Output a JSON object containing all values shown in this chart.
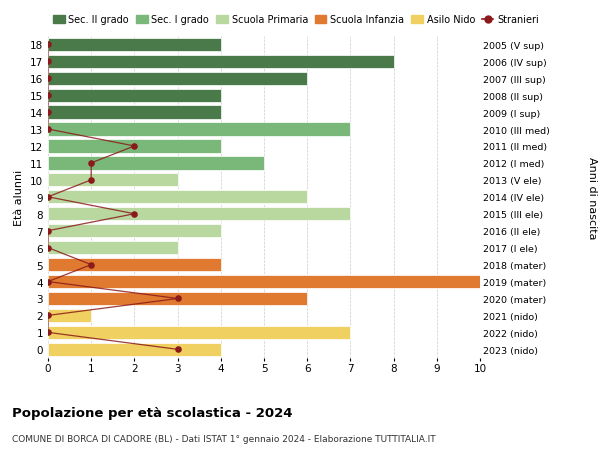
{
  "ages": [
    18,
    17,
    16,
    15,
    14,
    13,
    12,
    11,
    10,
    9,
    8,
    7,
    6,
    5,
    4,
    3,
    2,
    1,
    0
  ],
  "right_labels": [
    "2005 (V sup)",
    "2006 (IV sup)",
    "2007 (III sup)",
    "2008 (II sup)",
    "2009 (I sup)",
    "2010 (III med)",
    "2011 (II med)",
    "2012 (I med)",
    "2013 (V ele)",
    "2014 (IV ele)",
    "2015 (III ele)",
    "2016 (II ele)",
    "2017 (I ele)",
    "2018 (mater)",
    "2019 (mater)",
    "2020 (mater)",
    "2021 (nido)",
    "2022 (nido)",
    "2023 (nido)"
  ],
  "bar_values": [
    4,
    8,
    6,
    4,
    4,
    7,
    4,
    5,
    3,
    6,
    7,
    4,
    3,
    4,
    10,
    6,
    1,
    7,
    4
  ],
  "bar_colors": [
    "#4a7a4a",
    "#4a7a4a",
    "#4a7a4a",
    "#4a7a4a",
    "#4a7a4a",
    "#7ab87a",
    "#7ab87a",
    "#7ab87a",
    "#b8d8a0",
    "#b8d8a0",
    "#b8d8a0",
    "#b8d8a0",
    "#b8d8a0",
    "#e07a30",
    "#e07a30",
    "#e07a30",
    "#f0d060",
    "#f0d060",
    "#f0d060"
  ],
  "stranieri_values": [
    0,
    0,
    0,
    0,
    0,
    0,
    2,
    1,
    1,
    0,
    2,
    0,
    0,
    1,
    0,
    3,
    0,
    0,
    3
  ],
  "title_bold": "Popolazione per età scolastica - 2024",
  "subtitle": "COMUNE DI BORCA DI CADORE (BL) - Dati ISTAT 1° gennaio 2024 - Elaborazione TUTTITALIA.IT",
  "ylabel": "Età alunni",
  "right_ylabel": "Anni di nascita",
  "xlabel_vals": [
    0,
    1,
    2,
    3,
    4,
    5,
    6,
    7,
    8,
    9,
    10
  ],
  "xlim": [
    0,
    10
  ],
  "legend_items": [
    {
      "label": "Sec. II grado",
      "color": "#4a7a4a"
    },
    {
      "label": "Sec. I grado",
      "color": "#7ab87a"
    },
    {
      "label": "Scuola Primaria",
      "color": "#b8d8a0"
    },
    {
      "label": "Scuola Infanzia",
      "color": "#e07a30"
    },
    {
      "label": "Asilo Nido",
      "color": "#f0d060"
    },
    {
      "label": "Stranieri",
      "color": "#8b1a1a"
    }
  ],
  "bar_height": 0.78,
  "bg_color": "#ffffff",
  "grid_color": "#cccccc",
  "stranieri_line_color": "#8b1a1a",
  "stranieri_dot_color": "#8b1a1a"
}
